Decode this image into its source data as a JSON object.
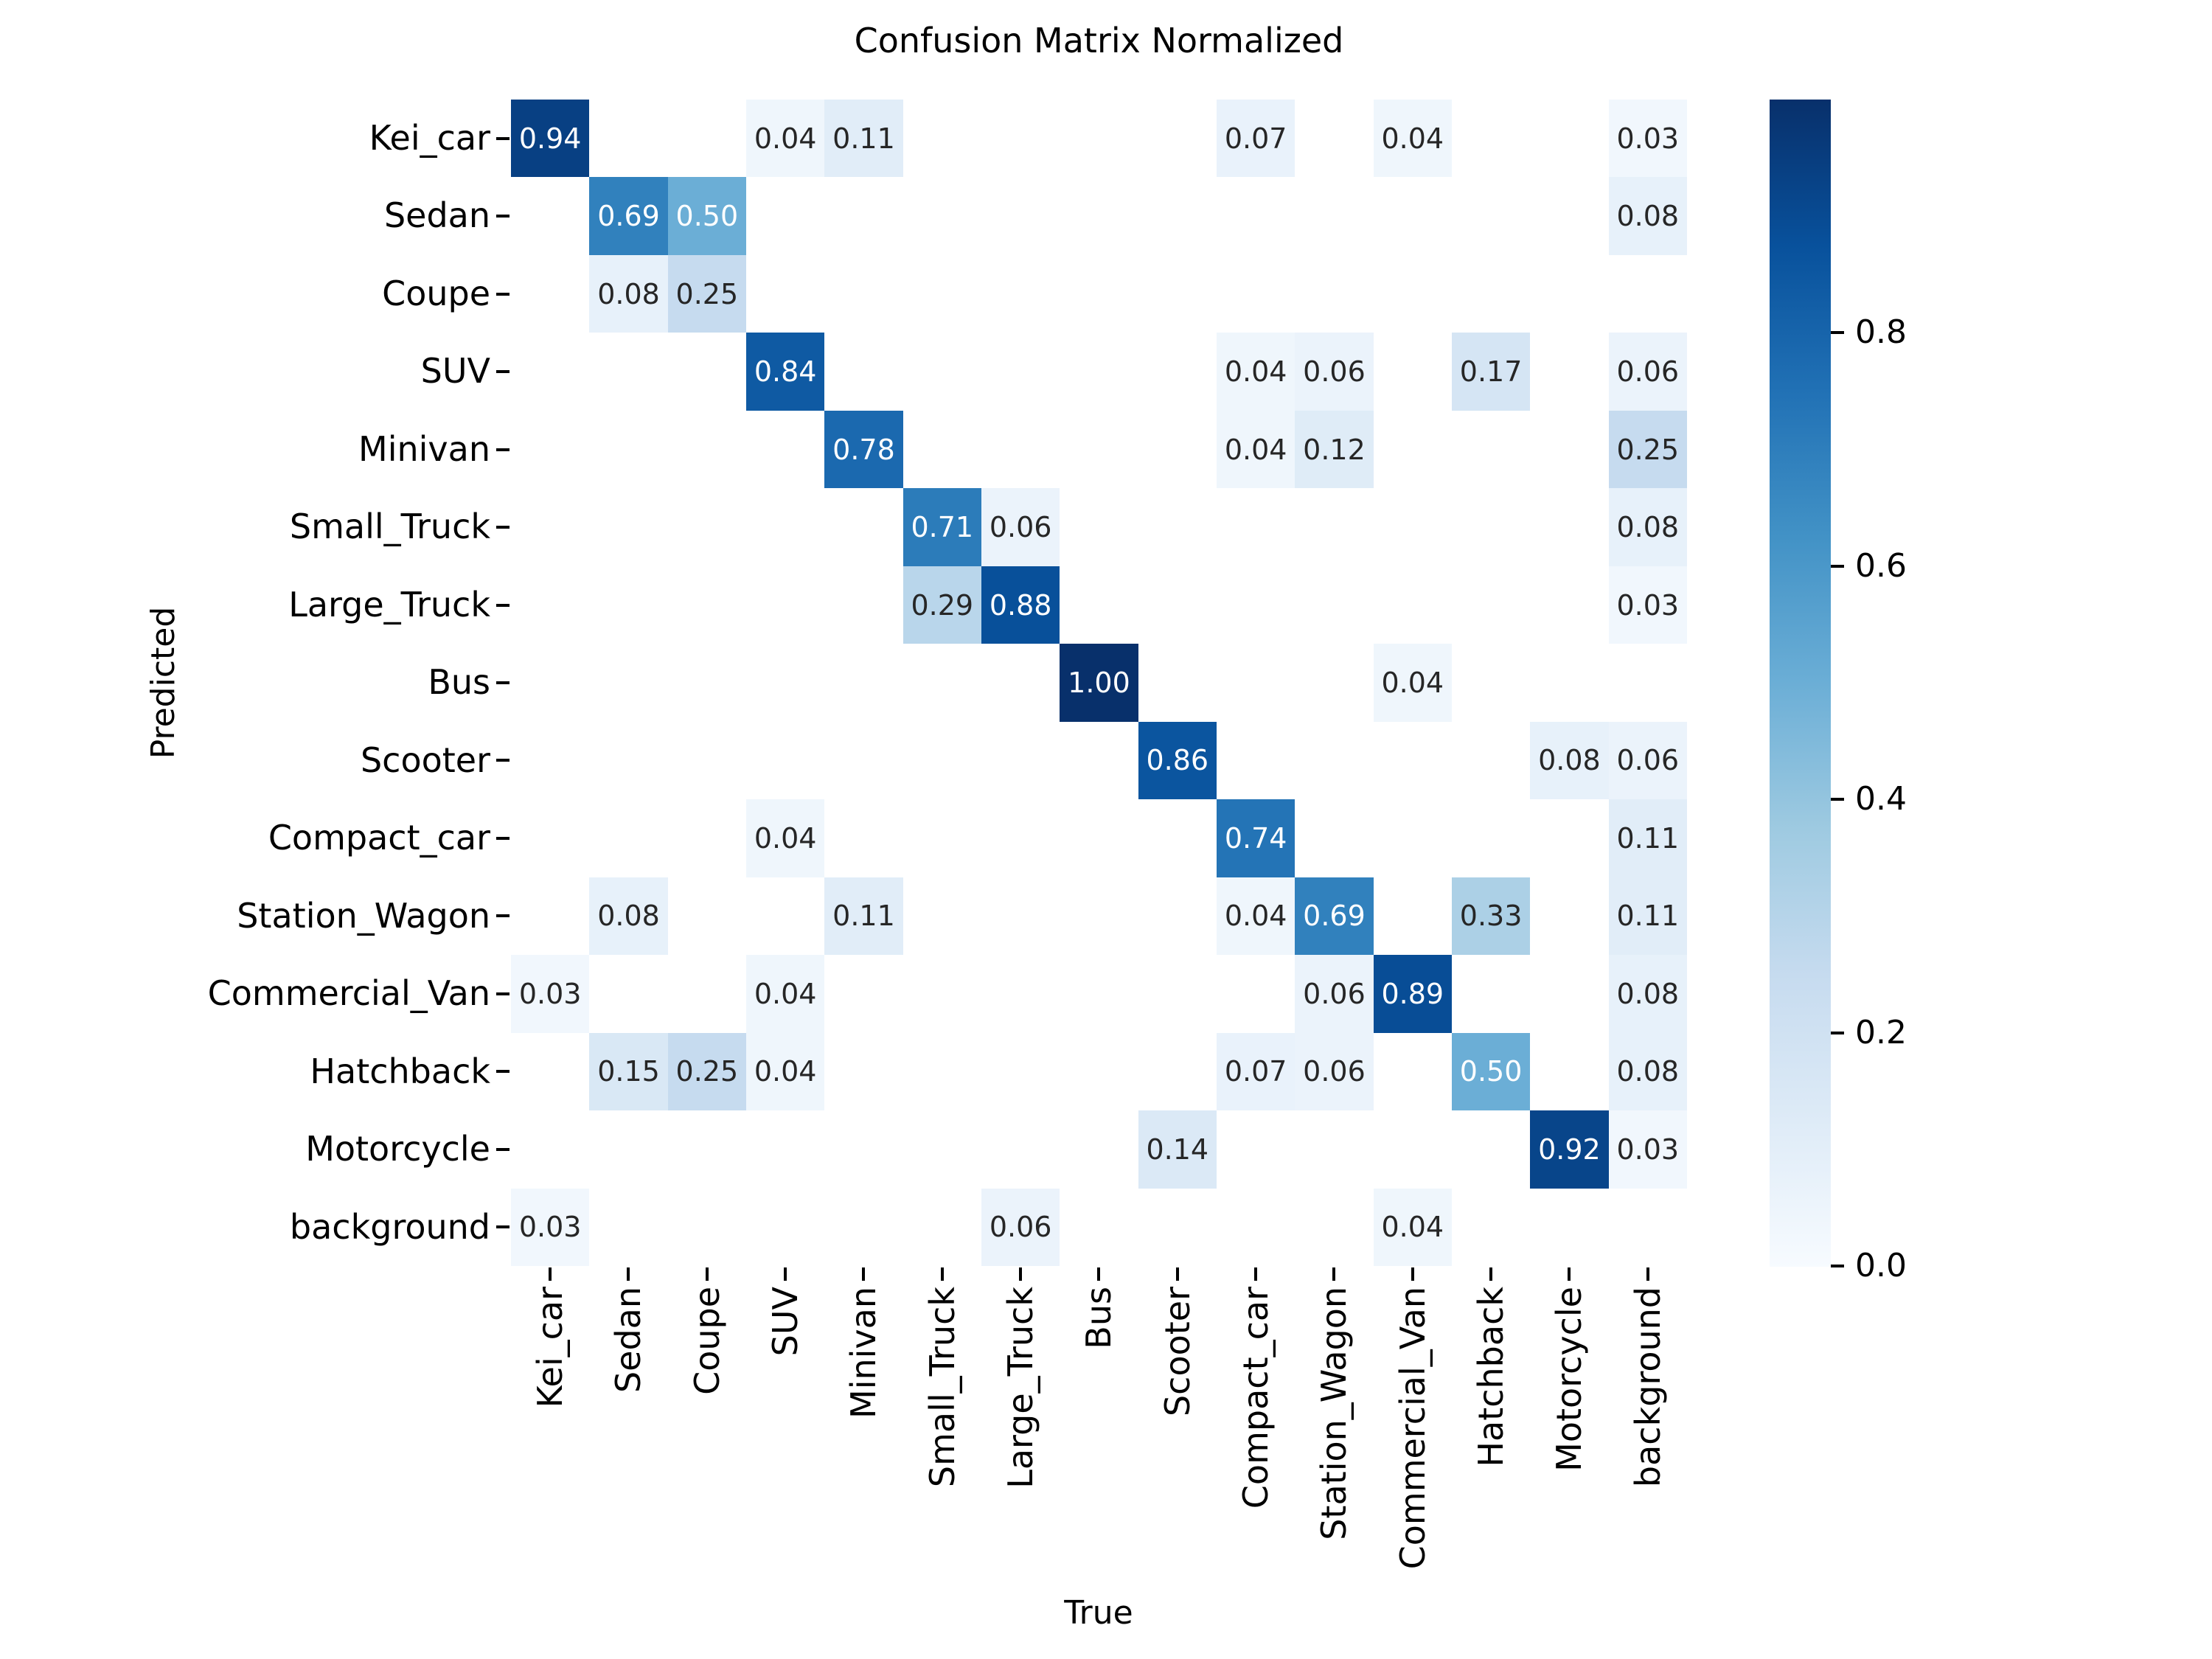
{
  "title": "Confusion Matrix Normalized",
  "chart_data": {
    "type": "heatmap",
    "title": "Confusion Matrix Normalized",
    "xlabel": "True",
    "ylabel": "Predicted",
    "categories": [
      "Kei_car",
      "Sedan",
      "Coupe",
      "SUV",
      "Minivan",
      "Small_Truck",
      "Large_Truck",
      "Bus",
      "Scooter",
      "Compact_car",
      "Station_Wagon",
      "Commercial_Van",
      "Hatchback",
      "Motorcycle",
      "background"
    ],
    "rows_axis": "Predicted",
    "cols_axis": "True",
    "matrix": [
      [
        0.94,
        null,
        null,
        0.04,
        0.11,
        null,
        null,
        null,
        null,
        0.07,
        null,
        0.04,
        null,
        null,
        0.03
      ],
      [
        null,
        0.69,
        0.5,
        null,
        null,
        null,
        null,
        null,
        null,
        null,
        null,
        null,
        null,
        null,
        0.08
      ],
      [
        null,
        0.08,
        0.25,
        null,
        null,
        null,
        null,
        null,
        null,
        null,
        null,
        null,
        null,
        null,
        null
      ],
      [
        null,
        null,
        null,
        0.84,
        null,
        null,
        null,
        null,
        null,
        0.04,
        0.06,
        null,
        0.17,
        null,
        0.06
      ],
      [
        null,
        null,
        null,
        null,
        0.78,
        null,
        null,
        null,
        null,
        0.04,
        0.12,
        null,
        null,
        null,
        0.25
      ],
      [
        null,
        null,
        null,
        null,
        null,
        0.71,
        0.06,
        null,
        null,
        null,
        null,
        null,
        null,
        null,
        0.08
      ],
      [
        null,
        null,
        null,
        null,
        null,
        0.29,
        0.88,
        null,
        null,
        null,
        null,
        null,
        null,
        null,
        0.03
      ],
      [
        null,
        null,
        null,
        null,
        null,
        null,
        null,
        1.0,
        null,
        null,
        null,
        0.04,
        null,
        null,
        null
      ],
      [
        null,
        null,
        null,
        null,
        null,
        null,
        null,
        null,
        0.86,
        null,
        null,
        null,
        null,
        0.08,
        0.06
      ],
      [
        null,
        null,
        null,
        0.04,
        null,
        null,
        null,
        null,
        null,
        0.74,
        null,
        null,
        null,
        null,
        0.11
      ],
      [
        null,
        0.08,
        null,
        null,
        0.11,
        null,
        null,
        null,
        null,
        0.04,
        0.69,
        null,
        0.33,
        null,
        0.11
      ],
      [
        0.03,
        null,
        null,
        0.04,
        null,
        null,
        null,
        null,
        null,
        null,
        0.06,
        0.89,
        null,
        null,
        0.08
      ],
      [
        null,
        0.15,
        0.25,
        0.04,
        null,
        null,
        null,
        null,
        null,
        0.07,
        0.06,
        null,
        0.5,
        null,
        0.08
      ],
      [
        null,
        null,
        null,
        null,
        null,
        null,
        null,
        null,
        0.14,
        null,
        null,
        null,
        null,
        0.92,
        0.03
      ],
      [
        0.03,
        null,
        null,
        null,
        null,
        null,
        0.06,
        null,
        null,
        null,
        null,
        0.04,
        null,
        null,
        null
      ]
    ],
    "colorbar": {
      "ticks": [
        0.8,
        0.6,
        0.4,
        0.2,
        0.0
      ],
      "vmin": 0.0,
      "vmax": 1.0,
      "colormap": "Blues",
      "position": "right"
    },
    "colormap_stops": [
      "#f7fbff",
      "#deebf7",
      "#c6dbef",
      "#9ecae1",
      "#6baed6",
      "#4292c6",
      "#2171b5",
      "#08519c",
      "#08306b"
    ],
    "annotation_colors": {
      "on_light": "#262626",
      "on_dark": "#ffffff"
    },
    "empty_cell_color": "#ffffff",
    "grid": false,
    "value_decimals": 2
  }
}
